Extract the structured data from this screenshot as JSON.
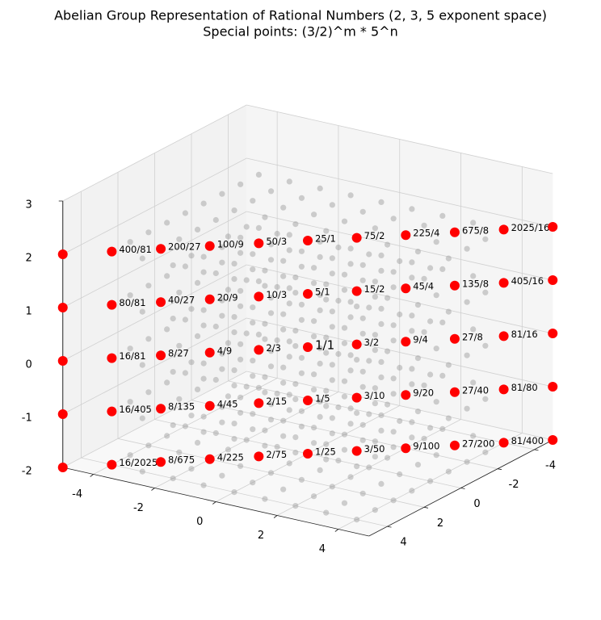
{
  "chart_data": {
    "type": "scatter3d",
    "title": "Abelian Group Representation of Rational Numbers (2, 3, 5 exponent space)",
    "subtitle": "Special points: (3/2)^m * 5^n",
    "xlim": [
      -5,
      5
    ],
    "ylim": [
      -5,
      5
    ],
    "zlim": [
      -2,
      3
    ],
    "xticks": [
      -4,
      -2,
      0,
      2,
      4
    ],
    "yticks": [
      -4,
      -2,
      0,
      2,
      4
    ],
    "zticks": [
      -2,
      -1,
      0,
      1,
      2,
      3
    ],
    "grid": true,
    "grid_points": {
      "color": "#999999",
      "x_levels": [
        -4,
        -3,
        -2,
        -1,
        0,
        1,
        2,
        3,
        4
      ],
      "y_levels": [
        -4,
        -3,
        -2,
        -1,
        0,
        1,
        2,
        3,
        4
      ],
      "z_levels": [
        -2,
        -1,
        0,
        1,
        2
      ]
    },
    "special_points": {
      "color": "#ff0000",
      "x": [
        -5,
        -4,
        -3,
        -2,
        -1,
        0,
        1,
        2,
        3,
        4,
        5,
        -5,
        -4,
        -3,
        -2,
        -1,
        0,
        1,
        2,
        3,
        4,
        5,
        -5,
        -4,
        -3,
        -2,
        -1,
        0,
        1,
        2,
        3,
        4,
        5,
        -5,
        -4,
        -3,
        -2,
        -1,
        0,
        1,
        2,
        3,
        4,
        5,
        -5,
        -4,
        -3,
        -2,
        -1,
        0,
        1,
        2,
        3,
        4,
        5
      ],
      "y": [
        5,
        4,
        3,
        2,
        1,
        0,
        -1,
        -2,
        -3,
        -4,
        -5,
        5,
        4,
        3,
        2,
        1,
        0,
        -1,
        -2,
        -3,
        -4,
        -5,
        5,
        4,
        3,
        2,
        1,
        0,
        -1,
        -2,
        -3,
        -4,
        -5,
        5,
        4,
        3,
        2,
        1,
        0,
        -1,
        -2,
        -3,
        -4,
        -5,
        5,
        4,
        3,
        2,
        1,
        0,
        -1,
        -2,
        -3,
        -4,
        -5
      ],
      "z": [
        2,
        2,
        2,
        2,
        2,
        2,
        2,
        2,
        2,
        2,
        2,
        1,
        1,
        1,
        1,
        1,
        1,
        1,
        1,
        1,
        1,
        1,
        0,
        0,
        0,
        0,
        0,
        0,
        0,
        0,
        0,
        0,
        0,
        -1,
        -1,
        -1,
        -1,
        -1,
        -1,
        -1,
        -1,
        -1,
        -1,
        -1,
        -2,
        -2,
        -2,
        -2,
        -2,
        -2,
        -2,
        -2,
        -2,
        -2,
        -2
      ],
      "labels": [
        null,
        "400/81",
        "200/27",
        "100/9",
        "50/3",
        "25/1",
        "75/2",
        "225/4",
        "675/8",
        "2025/16",
        null,
        null,
        "80/81",
        "40/27",
        "20/9",
        "10/3",
        "5/1",
        "15/2",
        "45/4",
        "135/8",
        "405/16",
        null,
        null,
        "16/81",
        "8/27",
        "4/9",
        "2/3",
        "1/1",
        "3/2",
        "9/4",
        "27/8",
        "81/16",
        null,
        null,
        "16/405",
        "8/135",
        "4/45",
        "2/15",
        "1/5",
        "3/10",
        "9/20",
        "27/40",
        "81/80",
        null,
        null,
        "16/2025",
        "8/675",
        "4/225",
        "2/75",
        "1/25",
        "3/50",
        "9/100",
        "27/200",
        "81/400",
        null
      ]
    }
  }
}
